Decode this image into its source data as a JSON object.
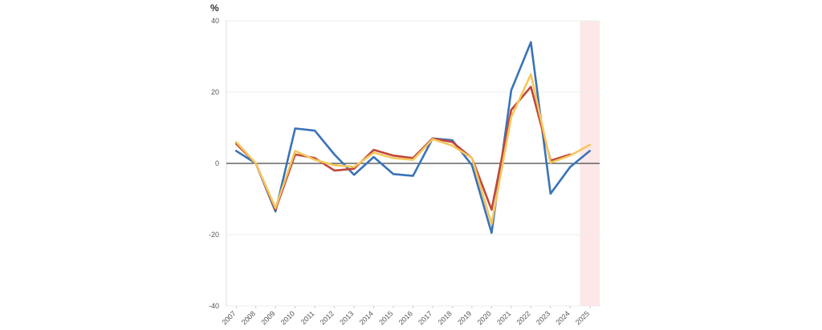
{
  "chart_data": {
    "type": "line",
    "title": "",
    "xlabel": "",
    "ylabel": "%",
    "ylim": [
      -40,
      40
    ],
    "yticks": [
      "40",
      "20",
      "0",
      "-20",
      "-40"
    ],
    "yticks_values": [
      40,
      20,
      0,
      -20,
      -40
    ],
    "x": [
      "2007",
      "2008",
      "2009",
      "2010",
      "2011",
      "2012",
      "2013",
      "2014",
      "2015",
      "2016",
      "2017",
      "2018",
      "2019",
      "2020",
      "2021",
      "2022",
      "2023",
      "2024",
      "2025"
    ],
    "grid": true,
    "legend": "none",
    "highlight": {
      "x": "2025",
      "color": "#fde7e7"
    },
    "zero_line_color": "#444444",
    "series": [
      {
        "color": "#3a73b8",
        "values": [
          3.5,
          0,
          -13.5,
          9.8,
          9.2,
          2.5,
          -3.2,
          1.8,
          -3.0,
          -3.5,
          7.0,
          6.5,
          -0.5,
          -19.5,
          20.5,
          34.0,
          -8.5,
          -1.0,
          3.5
        ]
      },
      {
        "color": "#c0473a",
        "values": [
          5.5,
          0,
          -13.0,
          2.5,
          1.5,
          -2.0,
          -1.5,
          3.8,
          2.2,
          1.5,
          7.0,
          6.0,
          1.5,
          -13.0,
          15.0,
          21.5,
          0.8,
          2.5,
          null
        ]
      },
      {
        "color": "#f5c65c",
        "values": [
          6.0,
          0,
          -12.5,
          3.5,
          1.0,
          -0.5,
          -1.0,
          3.0,
          1.5,
          1.0,
          6.8,
          5.0,
          1.5,
          -17.0,
          13.0,
          25.0,
          0.2,
          2.2,
          5.2
        ]
      }
    ]
  }
}
